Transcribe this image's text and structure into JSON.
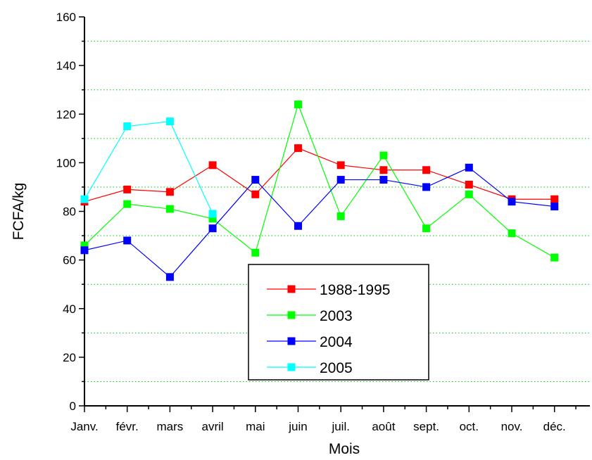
{
  "chart_data": {
    "type": "line",
    "title": "",
    "xlabel": "Mois",
    "ylabel": "FCFA/kg",
    "categories": [
      "Janv.",
      "févr.",
      "mars",
      "avril",
      "mai",
      "juin",
      "juil.",
      "août",
      "sept.",
      "oct.",
      "nov.",
      "déc."
    ],
    "ylim": [
      0,
      160
    ],
    "yticks": [
      0,
      20,
      40,
      60,
      80,
      100,
      120,
      140,
      160
    ],
    "grid": "horizontal dotted lines at 10, 30, 50, 70, 90, 110, 130, 150",
    "grid_color": "#00cc00",
    "legend_position": "bottom-center",
    "series": [
      {
        "name": "1988-1995",
        "color": "#ff0000",
        "values": [
          84,
          89,
          88,
          99,
          87,
          106,
          99,
          97,
          97,
          91,
          85,
          85
        ]
      },
      {
        "name": "2003",
        "color": "#00ff00",
        "values": [
          66,
          83,
          81,
          77,
          63,
          124,
          78,
          103,
          73,
          87,
          71,
          61
        ]
      },
      {
        "name": "2004",
        "color": "#0000ff",
        "values": [
          64,
          68,
          53,
          73,
          93,
          74,
          93,
          93,
          90,
          98,
          84,
          82
        ]
      },
      {
        "name": "2005",
        "color": "#00ffff",
        "values": [
          85,
          115,
          117,
          79,
          null,
          null,
          null,
          null,
          null,
          null,
          null,
          null
        ]
      }
    ]
  }
}
